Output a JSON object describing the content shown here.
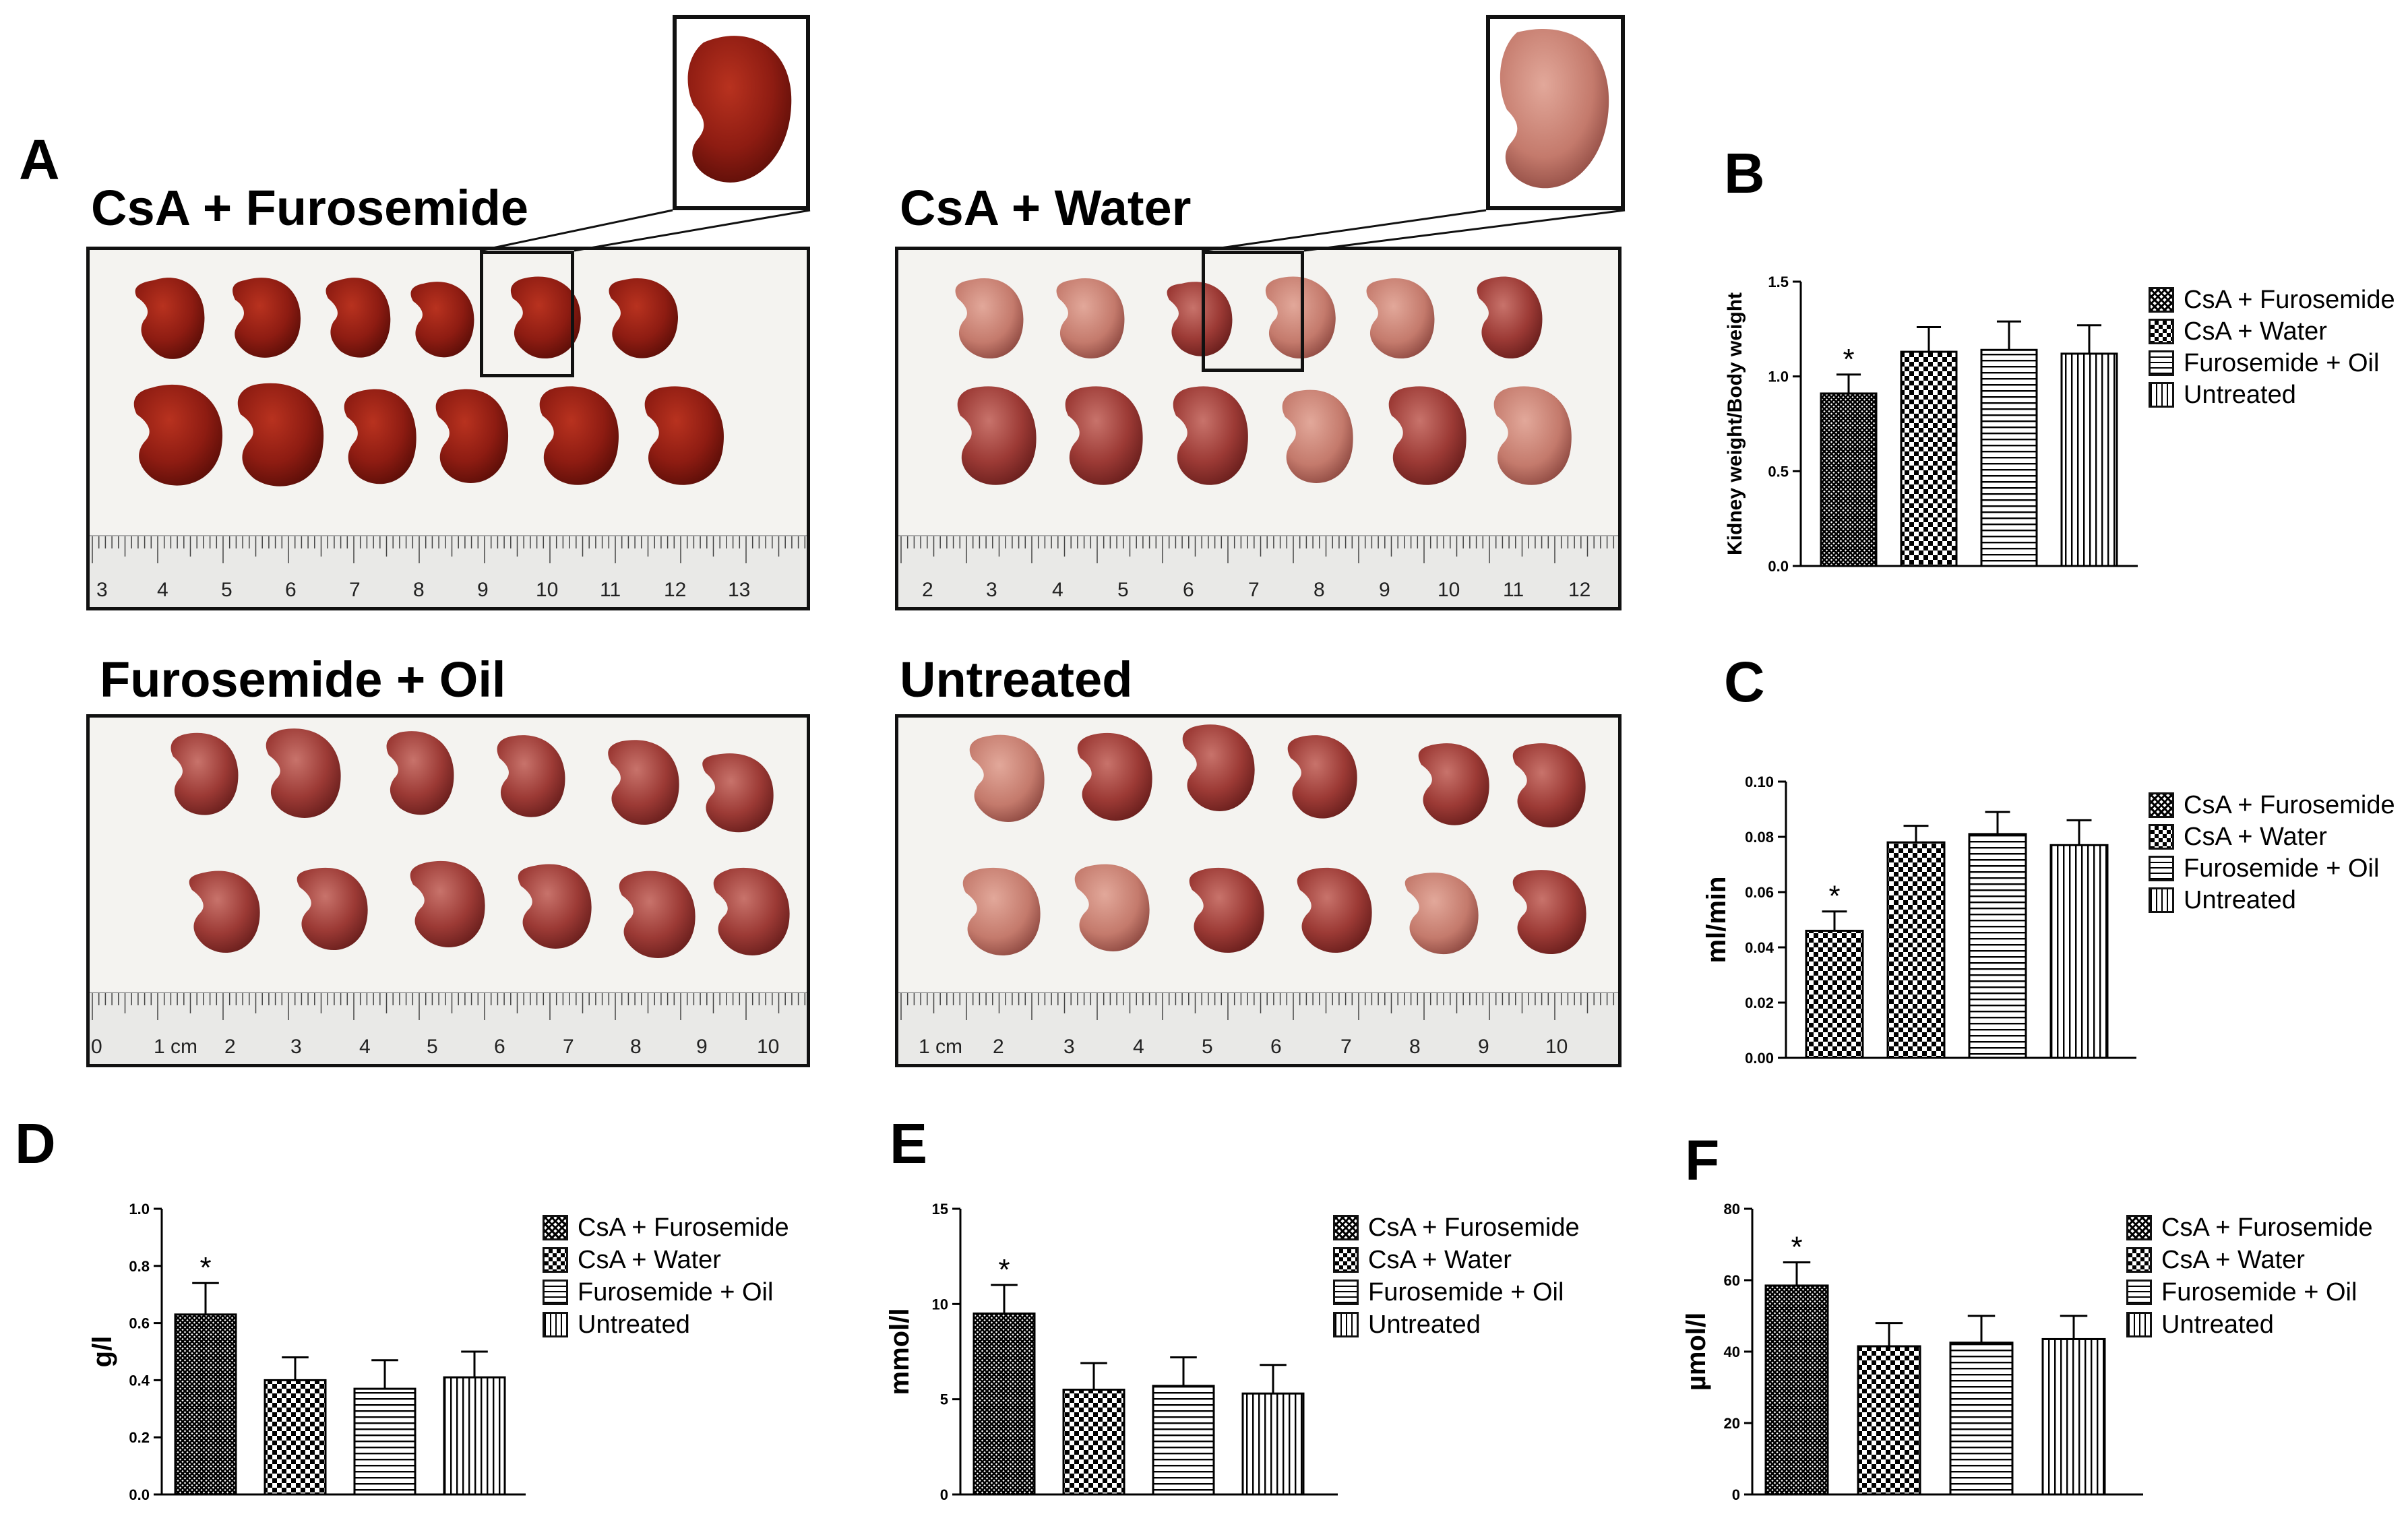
{
  "panel_labels": {
    "a": "A",
    "b": "B",
    "c": "C",
    "d": "D",
    "e": "E",
    "f": "F"
  },
  "groups": {
    "csa_furosemide": "CsA + Furosemide",
    "csa_water": "CsA + Water",
    "furosemide_oil": "Furosemide + Oil",
    "untreated": "Untreated"
  },
  "rulers": {
    "csa_furosemide": [
      "3",
      "4",
      "5",
      "6",
      "7",
      "8",
      "9",
      "10",
      "11",
      "12",
      "13"
    ],
    "csa_water": [
      "2",
      "3",
      "4",
      "5",
      "6",
      "7",
      "8",
      "9",
      "10",
      "11",
      "12"
    ],
    "furosemide_oil": [
      "0",
      "1 cm",
      "2",
      "3",
      "4",
      "5",
      "6",
      "7",
      "8",
      "9",
      "10"
    ],
    "untreated": [
      "1 cm",
      "2",
      "3",
      "4",
      "5",
      "6",
      "7",
      "8",
      "9",
      "10"
    ]
  },
  "colors": {
    "kidney_dark": "#8e1c12",
    "kidney_pale": "#c47a6c",
    "kidney_mid": "#9c3a35",
    "bar_stroke": "#000000"
  },
  "chart_data": [
    {
      "panel": "B",
      "type": "bar",
      "ylabel": "Kidney weight/Body weight",
      "ylim": [
        0,
        1.5
      ],
      "yticks": [
        "0.0",
        "0.5",
        "1.0",
        "1.5"
      ],
      "categories": [
        "CsA + Furosemide",
        "CsA + Water",
        "Furosemide + Oil",
        "Untreated"
      ],
      "values": [
        0.91,
        1.13,
        1.14,
        1.12
      ],
      "errors": [
        0.1,
        0.13,
        0.15,
        0.15
      ],
      "significance": [
        "*",
        "",
        "",
        ""
      ],
      "patterns": [
        "dense",
        "check",
        "horiz",
        "vert"
      ]
    },
    {
      "panel": "C",
      "type": "bar",
      "ylabel": "ml/min",
      "ylim": [
        0,
        0.1
      ],
      "yticks": [
        "0.00",
        "0.02",
        "0.04",
        "0.06",
        "0.08",
        "0.10"
      ],
      "categories": [
        "CsA + Furosemide",
        "CsA + Water",
        "Furosemide + Oil",
        "Untreated"
      ],
      "values": [
        0.046,
        0.078,
        0.081,
        0.077
      ],
      "errors": [
        0.007,
        0.006,
        0.008,
        0.009
      ],
      "significance": [
        "*",
        "",
        "",
        ""
      ],
      "patterns": [
        "check",
        "check",
        "horiz",
        "vert"
      ]
    },
    {
      "panel": "D",
      "type": "bar",
      "ylabel": "g/l",
      "ylim": [
        0,
        1.0
      ],
      "yticks": [
        "0.0",
        "0.2",
        "0.4",
        "0.6",
        "0.8",
        "1.0"
      ],
      "categories": [
        "CsA + Furosemide",
        "CsA + Water",
        "Furosemide + Oil",
        "Untreated"
      ],
      "values": [
        0.63,
        0.4,
        0.37,
        0.41
      ],
      "errors": [
        0.11,
        0.08,
        0.1,
        0.09
      ],
      "significance": [
        "*",
        "",
        "",
        ""
      ],
      "patterns": [
        "dense",
        "check",
        "horiz",
        "vert"
      ]
    },
    {
      "panel": "E",
      "type": "bar",
      "ylabel": "mmol/l",
      "ylim": [
        0,
        15
      ],
      "yticks": [
        "0",
        "5",
        "10",
        "15"
      ],
      "categories": [
        "CsA + Furosemide",
        "CsA + Water",
        "Furosemide + Oil",
        "Untreated"
      ],
      "values": [
        9.5,
        5.5,
        5.7,
        5.3
      ],
      "errors": [
        1.5,
        1.4,
        1.5,
        1.5
      ],
      "significance": [
        "*",
        "",
        "",
        ""
      ],
      "patterns": [
        "dense",
        "check",
        "horiz",
        "vert"
      ]
    },
    {
      "panel": "F",
      "type": "bar",
      "ylabel": "µmol/l",
      "ylim": [
        0,
        80
      ],
      "yticks": [
        "0",
        "20",
        "40",
        "60",
        "80"
      ],
      "categories": [
        "CsA + Furosemide",
        "CsA + Water",
        "Furosemide + Oil",
        "Untreated"
      ],
      "values": [
        58.5,
        41.5,
        42.5,
        43.5
      ],
      "errors": [
        6.5,
        6.5,
        7.5,
        6.5
      ],
      "significance": [
        "*",
        "",
        "",
        ""
      ],
      "patterns": [
        "dense",
        "check",
        "horiz",
        "vert"
      ]
    }
  ]
}
